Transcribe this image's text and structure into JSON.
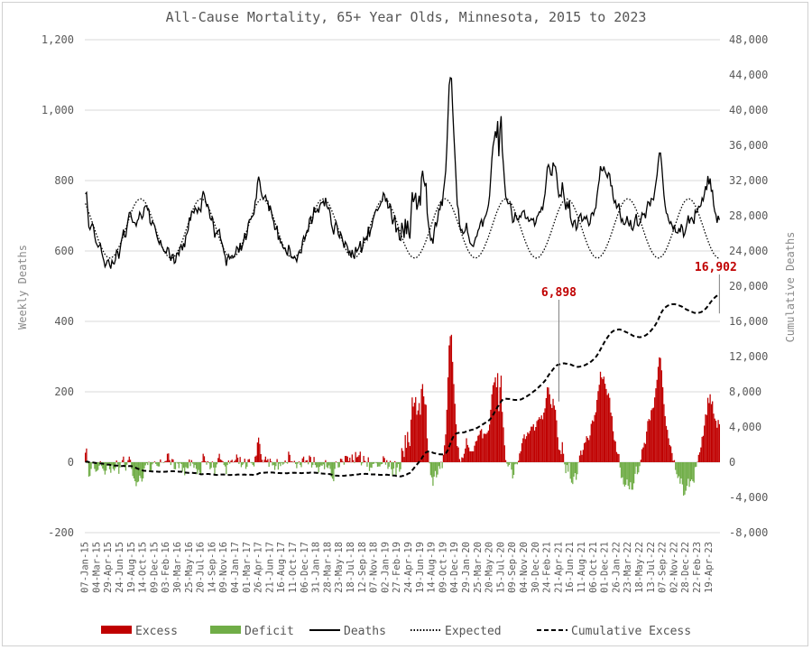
{
  "chart_data": {
    "type": "bar+line",
    "title": "All-Cause Mortality, 65+ Year Olds, Minnesota, 2015 to 2023",
    "ylabel_left": "Weekly Deaths",
    "ylabel_right": "Cumulative Deaths",
    "ylim_left": [
      -200,
      1200
    ],
    "ylim_right": [
      -8000,
      48000
    ],
    "yticks_left": [
      "-200",
      "0",
      "200",
      "400",
      "600",
      "800",
      "1,000",
      "1,200"
    ],
    "yticks_right": [
      "-8,000",
      "-4,000",
      "0",
      "4,000",
      "8,000",
      "12,000",
      "16,000",
      "20,000",
      "24,000",
      "28,000",
      "32,000",
      "36,000",
      "40,000",
      "44,000",
      "48,000"
    ],
    "x_tick_labels": [
      "07-Jan-15",
      "04-Mar-15",
      "29-Apr-15",
      "24-Jun-15",
      "19-Aug-15",
      "14-Oct-15",
      "09-Dec-15",
      "03-Feb-16",
      "30-Mar-16",
      "25-May-16",
      "20-Jul-16",
      "14-Sep-16",
      "09-Nov-16",
      "04-Jan-17",
      "01-Mar-17",
      "26-Apr-17",
      "21-Jun-17",
      "16-Aug-17",
      "11-Oct-17",
      "06-Dec-17",
      "31-Jan-18",
      "28-Mar-18",
      "23-May-18",
      "18-Jul-18",
      "12-Sep-18",
      "07-Nov-18",
      "02-Jan-19",
      "27-Feb-19",
      "24-Apr-19",
      "19-Jun-19",
      "14-Aug-19",
      "09-Oct-19",
      "04-Dec-19",
      "29-Jan-20",
      "25-Mar-20",
      "20-May-20",
      "15-Jul-20",
      "09-Sep-20",
      "04-Nov-20",
      "30-Dec-20",
      "24-Feb-21",
      "21-Apr-21",
      "16-Jun-21",
      "11-Aug-21",
      "06-Oct-21",
      "01-Dec-21",
      "26-Jan-22",
      "23-Mar-22",
      "18-May-22",
      "13-Jul-22",
      "07-Sep-22",
      "02-Nov-22",
      "28-Dec-22",
      "22-Feb-23",
      "19-Apr-23"
    ],
    "series": [
      {
        "name": "Excess",
        "kind": "bar",
        "axis": "left",
        "color": "#c00000"
      },
      {
        "name": "Deficit",
        "kind": "bar",
        "axis": "left",
        "color": "#70ad47"
      },
      {
        "name": "Deaths",
        "kind": "line",
        "axis": "left",
        "color": "#000000"
      },
      {
        "name": "Expected",
        "kind": "line",
        "axis": "left",
        "color": "#000000",
        "dash": "dotted"
      },
      {
        "name": "Cumulative Excess",
        "kind": "line",
        "axis": "right",
        "color": "#000000",
        "dash": "dashed"
      }
    ],
    "weekly_expected": [
      735,
      727,
      718,
      709,
      700,
      690,
      681,
      671,
      662,
      652,
      643,
      633,
      625,
      617,
      609,
      602,
      596,
      590,
      586,
      583,
      581,
      580,
      580,
      582,
      584,
      587,
      592,
      597,
      604,
      611,
      618,
      627,
      635,
      645,
      654,
      664,
      674,
      684,
      693,
      703,
      712,
      720,
      727,
      734,
      739,
      743,
      746,
      748,
      748,
      747,
      745,
      741,
      737,
      731,
      724,
      716,
      708,
      699,
      690,
      680,
      670,
      661,
      651,
      641,
      632,
      623,
      615,
      608,
      601,
      595,
      590,
      586,
      583,
      581,
      580,
      580,
      582,
      585,
      588,
      593,
      599,
      605,
      613,
      621,
      629,
      638,
      648,
      658,
      667,
      677,
      687,
      697,
      707,
      716,
      724,
      731,
      737,
      742,
      745,
      747,
      748,
      748,
      746,
      743,
      739,
      734,
      728,
      721,
      713,
      704,
      695,
      685,
      676,
      666,
      656,
      646,
      637,
      628,
      619,
      611,
      604,
      598,
      592,
      588,
      584,
      582,
      580,
      580,
      581,
      583,
      586,
      590,
      595,
      601,
      608,
      615,
      623,
      632,
      641,
      650,
      660,
      670,
      680,
      690,
      699,
      708,
      717,
      725,
      731,
      737,
      741,
      745,
      747,
      748,
      747,
      746,
      742,
      738,
      733,
      726,
      719,
      711,
      702,
      693,
      683,
      673,
      663,
      653,
      644,
      634,
      626,
      617,
      610,
      603,
      597,
      591,
      587,
      584,
      582,
      580,
      580,
      581,
      584,
      587,
      591,
      597,
      603,
      609,
      617,
      625,
      634,
      643,
      652,
      662,
      672,
      682,
      692,
      701,
      710,
      718,
      726,
      733,
      738,
      742,
      746,
      747,
      748,
      747,
      745,
      742,
      737,
      732,
      725,
      718,
      709,
      701,
      691,
      681,
      672,
      662,
      652,
      642,
      633,
      624,
      616,
      608,
      602,
      595,
      590,
      586,
      583,
      581,
      580,
      580,
      582,
      584,
      588,
      592,
      598,
      604,
      611,
      619,
      627,
      636,
      645,
      655,
      665,
      675,
      685,
      694,
      704,
      713,
      721,
      728,
      734,
      740,
      744,
      746,
      748,
      748,
      747,
      744,
      741,
      736,
      730,
      723,
      715,
      707,
      698,
      689,
      679,
      669,
      659,
      650,
      640,
      631,
      622,
      614,
      607,
      600,
      594,
      589,
      585,
      583,
      581,
      580,
      580,
      582,
      585,
      589,
      594,
      599,
      606,
      613,
      621,
      630,
      639,
      648,
      658,
      668,
      678,
      688,
      697,
      707,
      715,
      723,
      730,
      736,
      741,
      745,
      747,
      748,
      748,
      746,
      743,
      739,
      734,
      728,
      721,
      713,
      705,
      695,
      686,
      676,
      667,
      657,
      647,
      637,
      628,
      620,
      612,
      604,
      598,
      592,
      588,
      584,
      582,
      580,
      580,
      581,
      583,
      586,
      590,
      595,
      601,
      607,
      615,
      623,
      631,
      640,
      650,
      659,
      669,
      679,
      689,
      699,
      708,
      716,
      724,
      731,
      737,
      742,
      745,
      747,
      748,
      748,
      746,
      743,
      738,
      733,
      727,
      720,
      712,
      703,
      694,
      684,
      675,
      665,
      655,
      645,
      636,
      627,
      618,
      611,
      603,
      597,
      591,
      587,
      584,
      582,
      580,
      580,
      581,
      583,
      587,
      591,
      596,
      602,
      609,
      616,
      624,
      633,
      642,
      651,
      661,
      671,
      681,
      691,
      700,
      709,
      718,
      725,
      732,
      738,
      742,
      746,
      748,
      748,
      747,
      745,
      742,
      738,
      732,
      726,
      718,
      710,
      701,
      692,
      682,
      673,
      663,
      653,
      643,
      634,
      625,
      616,
      609,
      602,
      596,
      590,
      586,
      583,
      581,
      580,
      580,
      582,
      584,
      588,
      592,
      597,
      603,
      610,
      618,
      626,
      635,
      644,
      654,
      664,
      674,
      684,
      693,
      703,
      712,
      720,
      728,
      734,
      739,
      744,
      746,
      748,
      748,
      747,
      745,
      741,
      737,
      731,
      724,
      717,
      708,
      700,
      690,
      681,
      671,
      661,
      651,
      641,
      632,
      623,
      615,
      608,
      601,
      595,
      590,
      586,
      583,
      581,
      580,
      580,
      582,
      585,
      588,
      593,
      598,
      605,
      612,
      620,
      629,
      638,
      647,
      657,
      667,
      676,
      686,
      696,
      705,
      714,
      722,
      730,
      736,
      741,
      744,
      747,
      748,
      748,
      746,
      744,
      740,
      735,
      729,
      722,
      714,
      706,
      697,
      687,
      678,
      668,
      658,
      648,
      639,
      630,
      621,
      613,
      605,
      599,
      593,
      588,
      585,
      582,
      580,
      580,
      581,
      583,
      586,
      590,
      594,
      600,
      607,
      614,
      622,
      631,
      640,
      649,
      659,
      668,
      678,
      688,
      698,
      707,
      716,
      724,
      731,
      737,
      742,
      745
    ],
    "weekly_deaths": [
      762,
      766,
      715,
      668,
      661,
      671,
      678,
      669,
      643,
      625,
      618,
      611,
      615,
      620,
      598,
      584,
      572,
      555,
      562,
      573,
      575,
      560,
      550,
      573,
      565,
      563,
      575,
      602,
      598,
      578,
      603,
      626,
      641,
      661,
      640,
      640,
      667,
      690,
      709,
      710,
      693,
      681,
      681,
      680,
      671,
      686,
      691,
      710,
      703,
      692,
      699,
      723,
      728,
      728,
      716,
      717,
      680,
      674,
      684,
      678,
      672,
      656,
      641,
      629,
      620,
      631,
      614,
      608,
      599,
      598,
      594,
      610,
      608,
      587,
      572,
      589,
      590,
      565,
      568,
      592,
      595,
      588,
      611,
      616,
      602,
      622,
      611,
      644,
      650,
      660,
      695,
      686,
      713,
      712,
      708,
      723,
      718,
      708,
      723,
      717,
      712,
      750,
      770,
      760,
      742,
      727,
      731,
      718,
      693,
      688,
      697,
      670,
      638,
      651,
      650,
      658,
      661,
      636,
      625,
      614,
      596,
      586,
      558,
      580,
      589,
      578,
      584,
      587,
      581,
      586,
      593,
      612,
      608,
      596,
      623,
      601,
      615,
      628,
      651,
      631,
      647,
      678,
      689,
      689,
      696,
      700,
      705,
      741,
      750,
      793,
      811,
      797,
      770,
      755,
      747,
      753,
      758,
      743,
      742,
      713,
      729,
      713,
      693,
      685,
      661,
      662,
      672,
      632,
      640,
      623,
      624,
      610,
      606,
      608,
      595,
      587,
      617,
      605,
      584,
      583,
      579,
      585,
      579,
      570,
      587,
      599,
      595,
      595,
      628,
      641,
      632,
      648,
      658,
      656,
      691,
      697,
      677,
      693,
      725,
      710,
      711,
      719,
      709,
      729,
      737,
      737,
      742,
      727,
      751,
      728,
      720,
      723,
      706,
      676,
      662,
      647,
      672,
      683,
      670,
      647,
      638,
      652,
      642,
      626,
      609,
      626,
      620,
      611,
      593,
      599,
      583,
      603,
      586,
      578,
      611,
      598,
      604,
      612,
      628,
      595,
      608,
      637,
      631,
      637,
      632,
      669,
      640,
      660,
      669,
      689,
      700,
      712,
      718,
      715,
      722,
      728,
      738,
      741,
      765,
      760,
      740,
      750,
      722,
      723,
      734,
      703,
      676,
      689,
      701,
      653,
      664,
      664,
      632,
      630,
      680,
      663,
      637,
      691,
      648,
      686,
      651,
      635,
      706,
      767,
      739,
      749,
      765,
      717,
      732,
      757,
      729,
      807,
      828,
      800,
      786,
      793,
      707,
      678,
      655,
      631,
      635,
      621,
      656,
      682,
      672,
      688,
      719,
      717,
      742,
      728,
      768,
      796,
      827,
      895,
      984,
      1071,
      1092,
      1090,
      1006,
      935,
      871,
      803,
      732,
      718,
      676,
      658,
      661,
      649,
      652,
      659,
      680,
      653,
      640,
      623,
      619,
      615,
      613,
      627,
      639,
      642,
      658,
      664,
      680,
      689,
      669,
      688,
      696,
      703,
      715,
      730,
      757,
      808,
      862,
      898,
      916,
      940,
      921,
      969,
      869,
      944,
      983,
      885,
      844,
      795,
      754,
      744,
      734,
      735,
      736,
      712,
      681,
      684,
      706,
      699,
      688,
      688,
      700,
      696,
      709,
      713,
      715,
      693,
      692,
      696,
      684,
      686,
      692,
      688,
      692,
      672,
      680,
      697,
      702,
      711,
      710,
      724,
      718,
      743,
      762,
      798,
      837,
      845,
      835,
      816,
      815,
      851,
      842,
      840,
      819,
      780,
      754,
      759,
      755,
      795,
      766,
      740,
      717,
      740,
      720,
      743,
      695,
      680,
      670,
      685,
      687,
      660,
      667,
      691,
      701,
      706,
      684,
      688,
      697,
      691,
      699,
      685,
      672,
      678,
      705,
      709,
      702,
      717,
      723,
      757,
      782,
      802,
      841,
      829,
      828,
      840,
      826,
      818,
      809,
      822,
      818,
      785,
      785,
      752,
      737,
      743,
      722,
      727,
      735,
      705,
      683,
      691,
      676,
      675,
      682,
      699,
      681,
      670,
      688,
      663,
      659,
      671,
      691,
      705,
      674,
      671,
      679,
      688,
      708,
      703,
      706,
      693,
      719,
      740,
      738,
      727,
      749,
      748,
      745,
      770,
      793,
      815,
      851,
      878,
      878,
      846,
      801,
      758,
      729,
      708,
      704,
      688,
      678,
      683,
      673,
      661,
      673,
      654,
      652,
      651,
      665,
      653,
      676,
      667,
      641,
      649,
      663,
      680,
      701,
      678,
      692,
      695,
      686,
      677,
      715,
      709,
      715,
      727,
      725,
      729,
      750,
      743,
      762,
      784,
      773,
      813,
      789,
      806,
      770,
      772,
      731,
      712,
      703,
      680,
      700,
      688
    ],
    "cumulative_annotations": [
      {
        "label": "6,898",
        "date": "21-Apr-21",
        "value": 6898
      },
      {
        "label": "16,902",
        "date": "end",
        "value": 16902
      }
    ],
    "legend": [
      "Excess",
      "Deficit",
      "Deaths",
      "Expected",
      "Cumulative Excess"
    ],
    "legend_position": "bottom",
    "grid": "horizontal",
    "colors": {
      "excess": "#c00000",
      "deficit": "#70ad47",
      "line": "#000000",
      "grid": "#d9d9d9",
      "annotation": "#c00000"
    }
  }
}
